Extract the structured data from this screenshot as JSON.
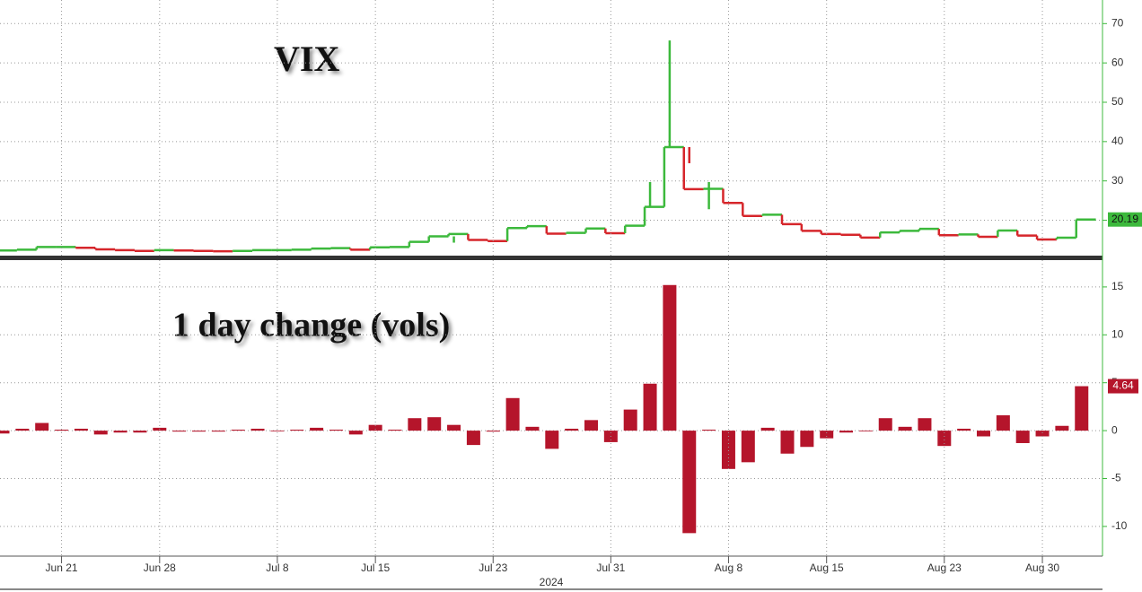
{
  "chart_data": [
    {
      "type": "step-bars",
      "title": "VIX",
      "categories": [
        null,
        null,
        null,
        "Jun 21",
        null,
        null,
        null,
        null,
        "Jun 28",
        null,
        null,
        null,
        null,
        null,
        "Jul 8",
        null,
        null,
        null,
        null,
        "Jul 15",
        null,
        null,
        null,
        null,
        null,
        "Jul 23",
        null,
        null,
        null,
        null,
        null,
        "Jul 31",
        null,
        null,
        null,
        null,
        null,
        "Aug 8",
        null,
        null,
        null,
        null,
        "Aug 15",
        null,
        null,
        null,
        null,
        null,
        "Aug 23",
        null,
        null,
        null,
        null,
        "Aug 30",
        null,
        null
      ],
      "values": [
        12.3,
        12.5,
        13.2,
        13.2,
        13.0,
        12.6,
        12.4,
        12.2,
        12.4,
        12.3,
        12.2,
        12.1,
        12.2,
        12.4,
        12.4,
        12.5,
        12.8,
        12.9,
        12.5,
        13.1,
        13.2,
        14.5,
        15.9,
        16.5,
        15.0,
        14.7,
        18.0,
        18.5,
        16.6,
        16.8,
        17.9,
        16.7,
        18.6,
        23.4,
        38.6,
        27.9,
        28.0,
        24.4,
        21.1,
        21.4,
        19.0,
        17.3,
        16.5,
        16.3,
        15.6,
        16.9,
        17.3,
        17.8,
        16.2,
        16.4,
        15.8,
        17.4,
        16.1,
        15.1,
        15.55,
        20.19
      ],
      "highs": [
        null,
        null,
        null,
        null,
        null,
        null,
        null,
        null,
        null,
        null,
        null,
        null,
        null,
        null,
        null,
        null,
        null,
        null,
        null,
        null,
        null,
        null,
        null,
        null,
        null,
        null,
        null,
        null,
        null,
        null,
        null,
        null,
        null,
        29.7,
        65.7,
        34.5,
        29.7,
        null,
        null,
        null,
        null,
        null,
        null,
        null,
        null,
        null,
        null,
        null,
        null,
        null,
        null,
        null,
        null,
        null,
        null,
        null
      ],
      "lows": [
        null,
        null,
        null,
        null,
        null,
        null,
        null,
        null,
        null,
        null,
        null,
        null,
        null,
        null,
        null,
        null,
        null,
        null,
        null,
        null,
        null,
        null,
        null,
        14.3,
        null,
        null,
        null,
        null,
        null,
        null,
        null,
        null,
        null,
        null,
        null,
        null,
        22.8,
        null,
        null,
        null,
        null,
        null,
        null,
        null,
        null,
        null,
        null,
        null,
        null,
        null,
        null,
        null,
        null,
        null,
        null,
        null
      ],
      "up_color": "#3cb93c",
      "down_color": "#d6262b",
      "ylim": [
        11,
        76
      ],
      "yticks": [
        20,
        30,
        40,
        50,
        60,
        70
      ],
      "grid": true
    },
    {
      "type": "bar",
      "title": "1 day change (vols)",
      "categories": [
        null,
        null,
        null,
        "Jun 21",
        null,
        null,
        null,
        null,
        "Jun 28",
        null,
        null,
        null,
        null,
        null,
        "Jul 8",
        null,
        null,
        null,
        null,
        "Jul 15",
        null,
        null,
        null,
        null,
        null,
        "Jul 23",
        null,
        null,
        null,
        null,
        null,
        "Jul 31",
        null,
        null,
        null,
        null,
        null,
        "Aug 8",
        null,
        null,
        null,
        null,
        "Aug 15",
        null,
        null,
        null,
        null,
        null,
        "Aug 23",
        null,
        null,
        null,
        null,
        "Aug 30",
        null,
        null
      ],
      "values": [
        -0.3,
        0.2,
        0.8,
        0.1,
        0.2,
        -0.4,
        -0.2,
        -0.2,
        0.3,
        -0.1,
        -0.1,
        -0.1,
        0.1,
        0.2,
        0,
        0.1,
        0.3,
        0.1,
        -0.4,
        0.6,
        0.1,
        1.3,
        1.4,
        0.6,
        -1.5,
        -0.1,
        3.4,
        0.4,
        -1.9,
        0.2,
        1.1,
        -1.2,
        2.2,
        4.9,
        15.2,
        -10.7,
        0.1,
        -4.0,
        -3.3,
        0.3,
        -2.4,
        -1.7,
        -0.8,
        -0.2,
        0,
        1.3,
        0.4,
        1.3,
        -1.6,
        0.2,
        -0.6,
        1.6,
        -1.3,
        -0.6,
        0.5,
        4.64
      ],
      "color": "#b5152b",
      "x_label": "2024",
      "ylim": [
        -13.1,
        17.8
      ],
      "yticks": [
        -10,
        -5,
        0,
        5,
        10,
        15
      ],
      "grid": true
    }
  ]
}
